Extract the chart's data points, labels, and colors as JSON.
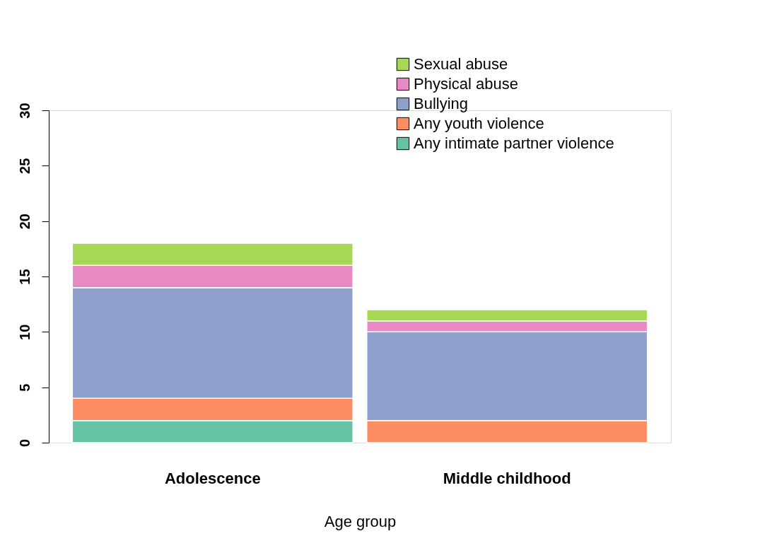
{
  "chart_data": {
    "type": "bar",
    "stacked": true,
    "xlabel": "Age group",
    "categories": [
      "Adolescence",
      "Middle childhood"
    ],
    "series": [
      {
        "name": "Any intimate partner violence",
        "color": "#66c2a5",
        "values": [
          2,
          0
        ]
      },
      {
        "name": "Any youth violence",
        "color": "#fc8d62",
        "values": [
          2,
          2
        ]
      },
      {
        "name": "Bullying",
        "color": "#8da0cb",
        "values": [
          10,
          8
        ]
      },
      {
        "name": "Physical abuse",
        "color": "#e78ac3",
        "values": [
          2,
          1
        ]
      },
      {
        "name": "Sexual abuse",
        "color": "#a6d854",
        "values": [
          2,
          1
        ]
      }
    ],
    "ylim": [
      0,
      30
    ],
    "yticks": [
      0,
      5,
      10,
      15,
      20,
      25,
      30
    ],
    "grid": false,
    "legend": "top right"
  }
}
